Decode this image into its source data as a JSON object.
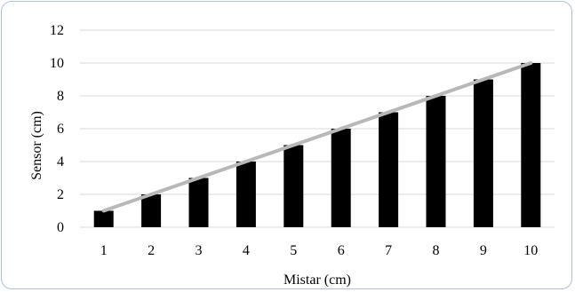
{
  "chart_data": {
    "type": "bar",
    "categories": [
      "1",
      "2",
      "3",
      "4",
      "5",
      "6",
      "7",
      "8",
      "9",
      "10"
    ],
    "series": [
      {
        "values": [
          1,
          2,
          3,
          4,
          5,
          6,
          7,
          8,
          9,
          10
        ]
      }
    ],
    "trendline": {
      "x": [
        "1",
        "10"
      ],
      "y": [
        1,
        10
      ]
    },
    "xlabel": "Mistar (cm)",
    "ylabel": "Sensor (cm)",
    "ylim": [
      0,
      12
    ],
    "yticks": [
      "0",
      "2",
      "4",
      "6",
      "8",
      "10",
      "12"
    ],
    "grid": true,
    "legend": "none",
    "colors": {
      "bar": "#000000",
      "trendline": "#b8b8b8",
      "grid": "#d9d9d9",
      "border": "#a9c1df"
    }
  }
}
